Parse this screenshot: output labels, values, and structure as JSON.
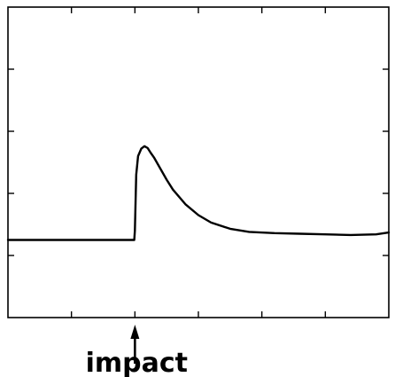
{
  "chart_data": {
    "type": "line",
    "title": "",
    "xlabel": "",
    "ylabel": "",
    "xlim": [
      0,
      6
    ],
    "ylim": [
      0,
      5
    ],
    "x_ticks": [
      1,
      2,
      3,
      4,
      5
    ],
    "y_ticks": [
      1,
      2,
      3,
      4
    ],
    "grid": false,
    "legend": "none",
    "series": [
      {
        "values_x": [
          0.0,
          0.5,
          1.0,
          1.5,
          1.99,
          2.0,
          2.02,
          2.05,
          2.1,
          2.15,
          2.2,
          2.25,
          2.3,
          2.4,
          2.5,
          2.6,
          2.8,
          3.0,
          3.2,
          3.5,
          3.8,
          4.2,
          4.6,
          5.0,
          5.4,
          5.8,
          6.0
        ],
        "values_y": [
          1.25,
          1.25,
          1.25,
          1.25,
          1.25,
          1.4,
          2.3,
          2.6,
          2.72,
          2.76,
          2.73,
          2.65,
          2.58,
          2.4,
          2.22,
          2.06,
          1.82,
          1.65,
          1.53,
          1.43,
          1.38,
          1.36,
          1.35,
          1.34,
          1.33,
          1.34,
          1.37
        ]
      }
    ],
    "annotations": [
      {
        "text": "impact",
        "x": 2.0,
        "style": "upward arrow below x-axis"
      }
    ]
  }
}
